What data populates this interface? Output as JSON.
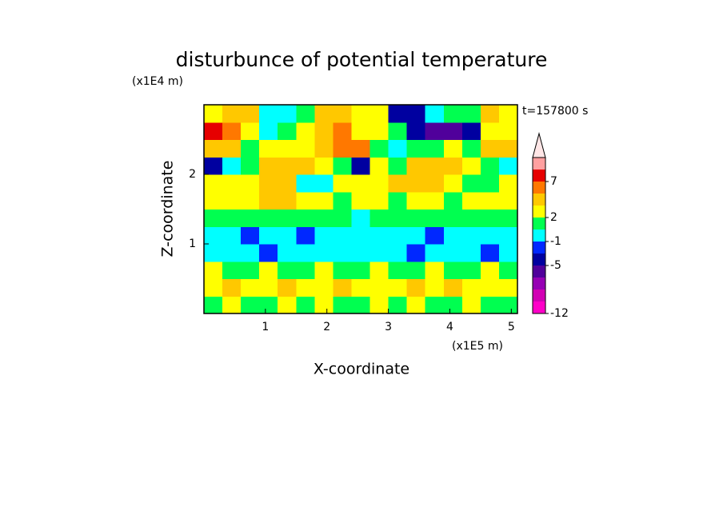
{
  "chart_data": {
    "type": "contour",
    "title": "disturbunce of potential temperature",
    "x_label": "X-coordinate",
    "y_label": "Z-coordinate",
    "x_unit": "(x1E5 m)",
    "y_unit": "(x1E4 m)",
    "annotation": "t=157800 s",
    "xlim": [
      0,
      5.1
    ],
    "ylim": [
      0,
      3
    ],
    "xticks": [
      1,
      2,
      3,
      4,
      5
    ],
    "yticks": [
      1,
      2
    ],
    "x": [
      0.15,
      0.45,
      0.75,
      1.05,
      1.35,
      1.65,
      1.95,
      2.25,
      2.55,
      2.85,
      3.15,
      3.45,
      3.75,
      4.05,
      4.35,
      4.65,
      4.95
    ],
    "y": [
      0.125,
      0.375,
      0.625,
      0.875,
      1.125,
      1.375,
      1.625,
      1.875,
      2.125,
      2.375,
      2.625,
      2.875
    ],
    "z": [
      [
        1.5,
        2.5,
        1.5,
        1.5,
        2.5,
        1.5,
        2.5,
        1.5,
        1.5,
        2.5,
        1.5,
        2.5,
        1.5,
        1.5,
        2.5,
        1.5,
        1.5
      ],
      [
        2.5,
        3.5,
        2.5,
        2.5,
        3.5,
        2.5,
        2.5,
        3.5,
        2.5,
        2.5,
        2.5,
        3.5,
        2.5,
        3.5,
        2.5,
        2.5,
        2.5
      ],
      [
        2.5,
        1.5,
        1.5,
        2.5,
        1.5,
        1.5,
        2.5,
        1.5,
        1.5,
        2.5,
        1.5,
        1.5,
        2.5,
        1.5,
        1.5,
        2.5,
        1.5
      ],
      [
        0,
        0,
        0,
        -2,
        0,
        0,
        0,
        0,
        0,
        0,
        0,
        -2,
        0,
        0,
        0,
        -2,
        0
      ],
      [
        0,
        0,
        -2,
        0,
        0,
        -2,
        0,
        0,
        0,
        0,
        0,
        0,
        -2,
        0,
        0,
        0,
        0
      ],
      [
        1.5,
        1.5,
        1.5,
        1.5,
        1.5,
        1.5,
        1.5,
        1.5,
        0,
        1.5,
        1.5,
        1.5,
        1.5,
        1.5,
        1.5,
        1.5,
        1.5
      ],
      [
        2.5,
        2.5,
        2.5,
        3.5,
        3.5,
        2.5,
        2.5,
        1.5,
        2.5,
        2.5,
        1.5,
        2.5,
        2.5,
        1.5,
        2.5,
        2.5,
        2.5
      ],
      [
        2.5,
        2.5,
        2.5,
        3.5,
        3.5,
        0,
        0,
        2.5,
        2.5,
        2.5,
        3.5,
        3.5,
        3.5,
        2.5,
        1.5,
        1.5,
        2.5
      ],
      [
        -4,
        0,
        1.5,
        3.5,
        4,
        4,
        2.5,
        1.5,
        -4,
        2.5,
        1.5,
        4,
        4,
        4,
        2.5,
        1.5,
        0
      ],
      [
        4,
        3.5,
        1.5,
        2.5,
        2.5,
        2.5,
        4,
        6,
        6,
        1.5,
        0,
        1.5,
        1.5,
        2.5,
        1.5,
        4,
        4
      ],
      [
        8,
        6,
        2.5,
        0,
        1.5,
        2.5,
        4,
        6,
        2.5,
        2.5,
        1.5,
        -4,
        -6,
        -6,
        -4,
        2.5,
        2.5
      ],
      [
        2.5,
        4,
        4,
        0,
        0,
        1.5,
        4,
        4,
        2.5,
        2.5,
        -4,
        -4,
        0,
        1.5,
        1.5,
        4,
        2.5
      ]
    ],
    "colorbar": {
      "levels": [
        -12,
        -10,
        -8,
        -6,
        -5,
        -3,
        -1,
        1,
        2,
        3,
        5,
        7,
        9,
        11
      ],
      "colors": [
        "#ff00c8",
        "#d200b4",
        "#9600b4",
        "#50009b",
        "#0000a0",
        "#0028ff",
        "#00ffff",
        "#00ff50",
        "#ffff00",
        "#ffc800",
        "#ff7800",
        "#e60000",
        "#ffa0a0"
      ],
      "extend_color": "#ffe6e6",
      "ticks": [
        -12,
        -5,
        -1,
        2,
        7
      ]
    }
  }
}
